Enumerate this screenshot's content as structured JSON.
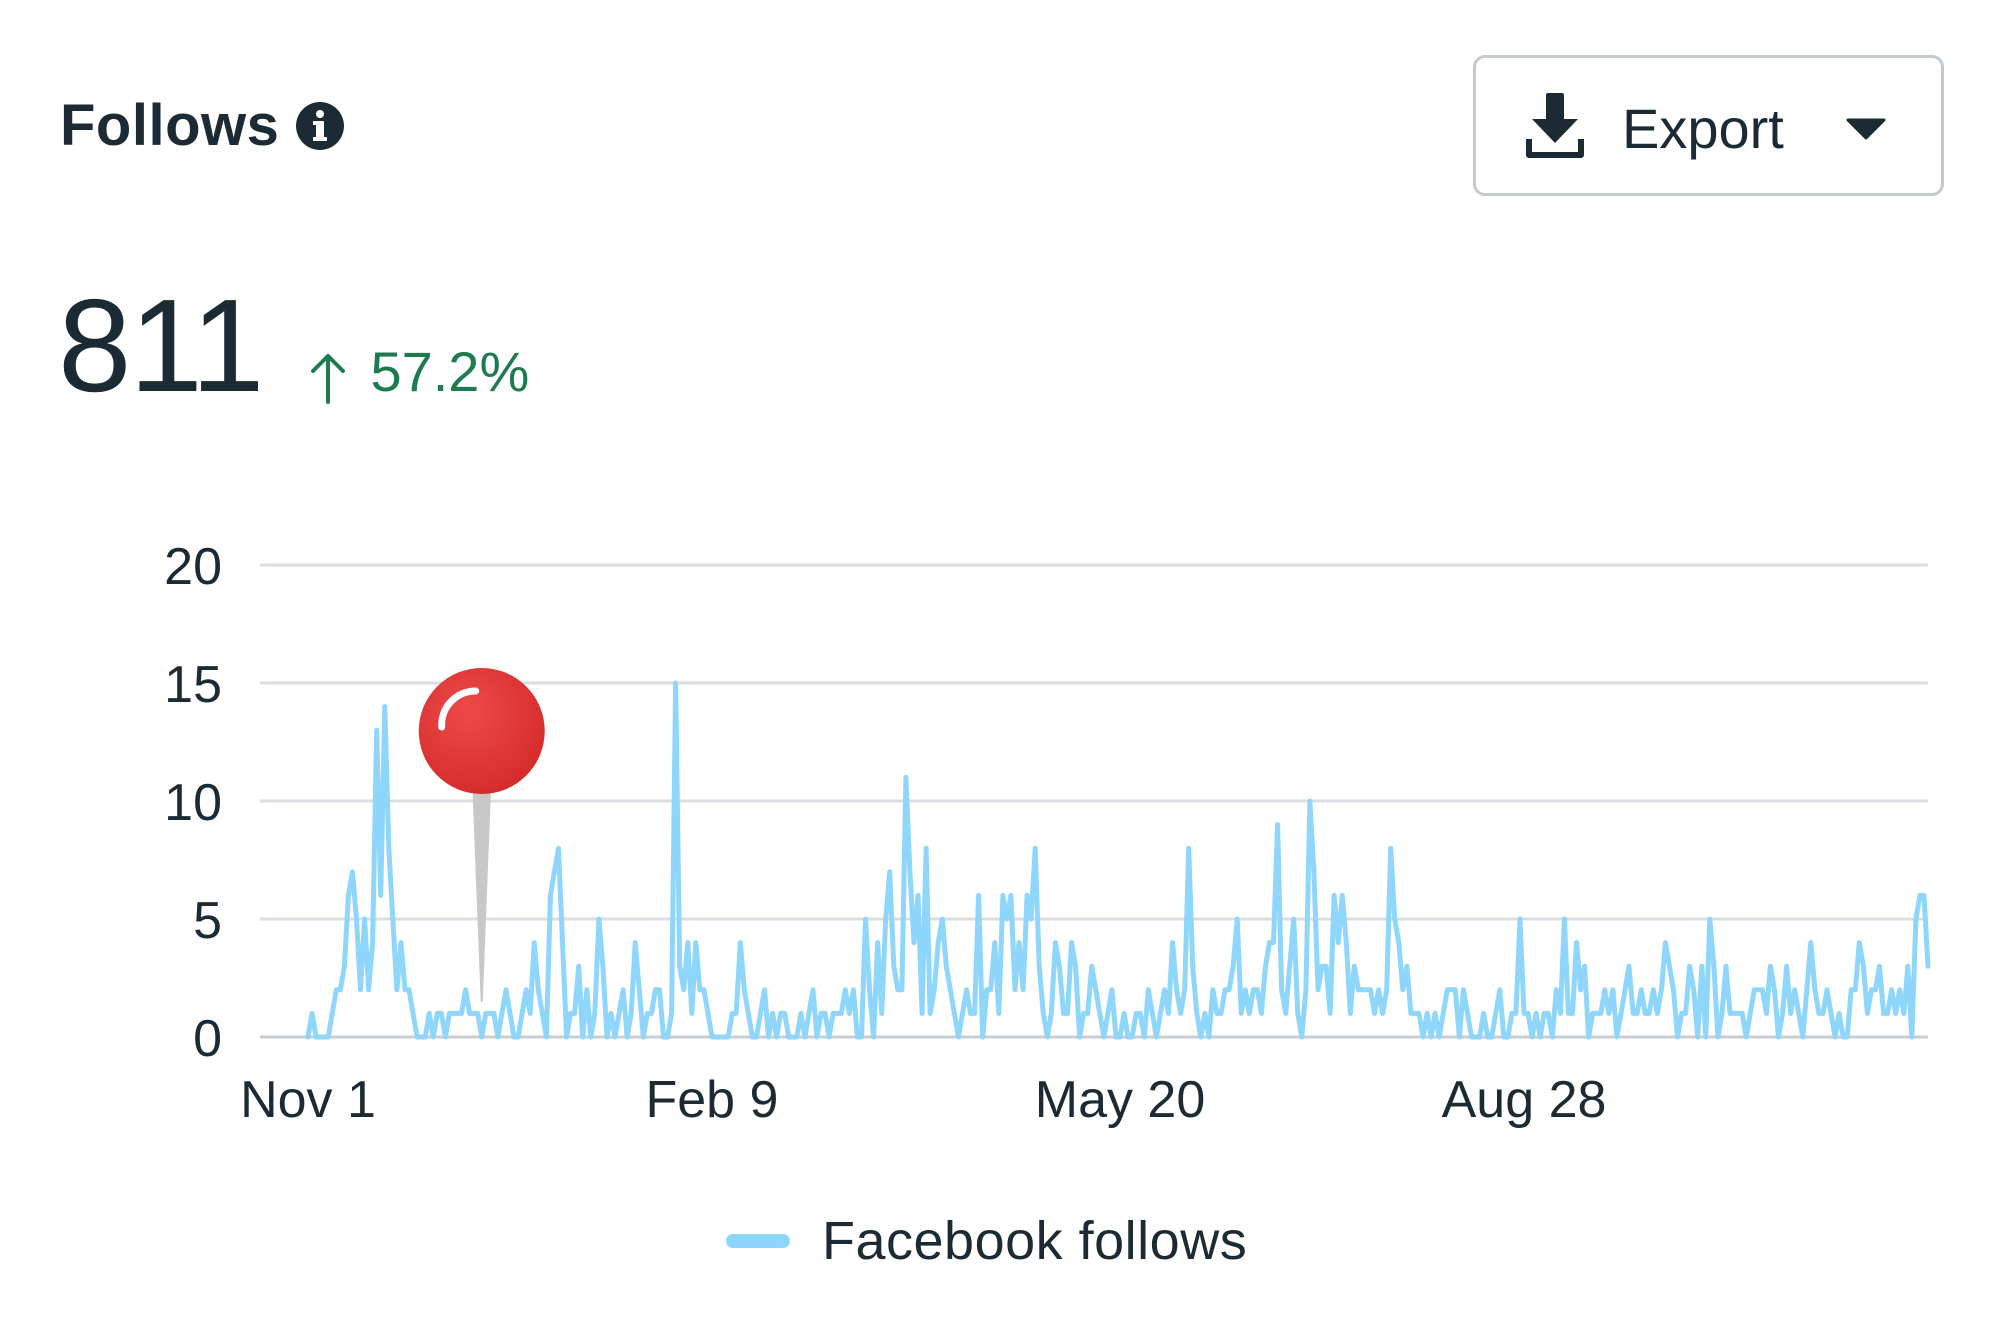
{
  "header": {
    "title": "Follows",
    "info_icon": "info-icon"
  },
  "export": {
    "label": "Export",
    "icon": "download-icon",
    "caret_icon": "caret-down-icon"
  },
  "metric": {
    "value": "811",
    "delta": "57.2%",
    "delta_direction": "up",
    "delta_color": "#1e7b4f"
  },
  "pin": {
    "icon": "red-pushpin-icon",
    "color": "#e03436",
    "x_day": 43
  },
  "chart_data": {
    "type": "line",
    "title": "Follows",
    "xlabel": "",
    "ylabel": "",
    "ylim": [
      0,
      20
    ],
    "yticks": [
      0,
      5,
      10,
      15,
      20
    ],
    "x_tick_labels": [
      {
        "label": "Nov 1",
        "day": 0
      },
      {
        "label": "Feb 9",
        "day": 100
      },
      {
        "label": "May 20",
        "day": 201
      },
      {
        "label": "Aug 28",
        "day": 301
      }
    ],
    "grid": true,
    "legend": "bottom",
    "series": [
      {
        "name": "Facebook follows",
        "color": "#8fd6fc",
        "values": [
          0,
          1,
          0,
          0,
          0,
          0,
          1,
          2,
          2,
          3,
          6,
          7,
          5,
          2,
          5,
          2,
          4,
          13,
          6,
          14,
          8,
          5,
          2,
          4,
          2,
          2,
          1,
          0,
          0,
          0,
          1,
          0,
          1,
          1,
          0,
          1,
          1,
          1,
          1,
          2,
          1,
          1,
          1,
          0,
          1,
          1,
          1,
          0,
          1,
          2,
          1,
          0,
          0,
          1,
          2,
          1,
          4,
          2,
          1,
          0,
          6,
          7,
          8,
          4,
          0,
          1,
          1,
          3,
          0,
          2,
          0,
          1,
          5,
          3,
          0,
          1,
          0,
          1,
          2,
          0,
          1,
          4,
          2,
          0,
          1,
          1,
          2,
          2,
          0,
          0,
          1,
          15,
          3,
          2,
          4,
          1,
          4,
          2,
          2,
          1,
          0,
          0,
          0,
          0,
          0,
          1,
          1,
          4,
          2,
          1,
          0,
          0,
          1,
          2,
          0,
          1,
          0,
          1,
          1,
          0,
          0,
          0,
          1,
          0,
          1,
          2,
          0,
          1,
          1,
          0,
          1,
          1,
          1,
          2,
          1,
          2,
          0,
          0,
          5,
          2,
          0,
          4,
          1,
          5,
          7,
          3,
          2,
          2,
          11,
          7,
          4,
          6,
          1,
          8,
          1,
          2,
          4,
          5,
          3,
          2,
          1,
          0,
          1,
          2,
          1,
          1,
          6,
          0,
          2,
          2,
          4,
          1,
          6,
          5,
          6,
          2,
          4,
          2,
          6,
          5,
          8,
          3,
          1,
          0,
          1,
          4,
          3,
          1,
          1,
          4,
          3,
          0,
          1,
          1,
          3,
          2,
          1,
          0,
          1,
          2,
          0,
          0,
          1,
          0,
          0,
          1,
          1,
          0,
          2,
          1,
          0,
          1,
          2,
          1,
          4,
          2,
          1,
          2,
          8,
          3,
          1,
          0,
          1,
          0,
          2,
          1,
          1,
          2,
          2,
          3,
          5,
          1,
          2,
          1,
          2,
          2,
          1,
          3,
          4,
          4,
          9,
          2,
          1,
          3,
          5,
          1,
          0,
          2,
          10,
          7,
          2,
          3,
          3,
          1,
          6,
          4,
          6,
          4,
          1,
          3,
          2,
          2,
          2,
          2,
          1,
          2,
          1,
          2,
          8,
          5,
          4,
          2,
          3,
          1,
          1,
          1,
          0,
          1,
          0,
          1,
          0,
          1,
          2,
          2,
          2,
          0,
          2,
          1,
          0,
          0,
          0,
          1,
          0,
          0,
          1,
          2,
          0,
          0,
          1,
          1,
          5,
          1,
          1,
          0,
          1,
          0,
          1,
          1,
          0,
          2,
          1,
          5,
          1,
          1,
          4,
          2,
          3,
          0,
          1,
          1,
          1,
          2,
          1,
          2,
          0,
          1,
          2,
          3,
          1,
          1,
          2,
          1,
          1,
          2,
          1,
          2,
          4,
          3,
          2,
          0,
          1,
          1,
          3,
          2,
          0,
          3,
          0,
          5,
          3,
          0,
          1,
          3,
          1,
          1,
          1,
          1,
          0,
          1,
          2,
          2,
          2,
          1,
          3,
          2,
          0,
          1,
          3,
          1,
          2,
          1,
          0,
          2,
          4,
          2,
          1,
          1,
          2,
          1,
          0,
          1,
          0,
          0,
          2,
          2,
          4,
          3,
          1,
          2,
          2,
          3,
          1,
          1,
          2,
          1,
          2,
          1,
          3,
          0,
          5,
          6,
          6,
          3
        ]
      }
    ]
  }
}
